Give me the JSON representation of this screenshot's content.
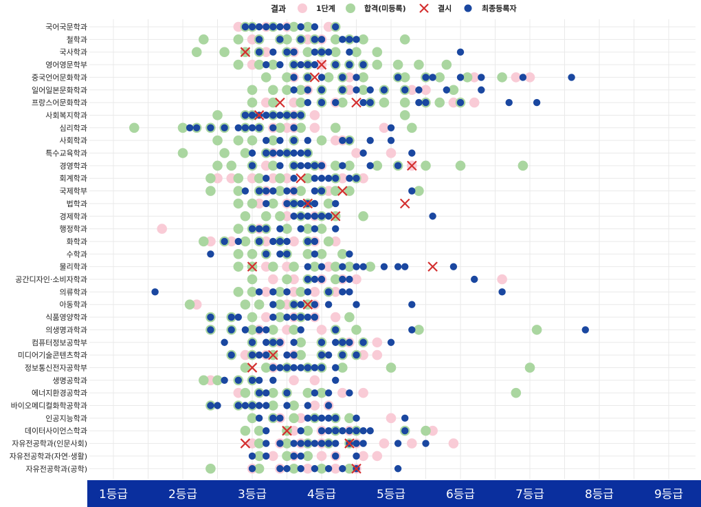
{
  "chart_data": {
    "type": "scatter",
    "legend": {
      "title": "결과",
      "placement": "top-center",
      "entries": [
        {
          "key": "s1",
          "label": "1단계",
          "color": "#f9cbd6",
          "marker": "circle"
        },
        {
          "key": "pass",
          "label": "합격(미등록)",
          "color": "#aad6a0",
          "marker": "circle"
        },
        {
          "key": "fail",
          "label": "결시",
          "color": "#d32f2f",
          "marker": "x"
        },
        {
          "key": "final",
          "label": "최종등록자",
          "color": "#1a47a0",
          "marker": "dot"
        }
      ]
    },
    "x_axis": {
      "range": [
        0.6,
        9.4
      ],
      "ticks": [
        1,
        2,
        3,
        4,
        5,
        6,
        7,
        8,
        9
      ],
      "tick_labels": [
        "1등급",
        "2등급",
        "3등급",
        "4등급",
        "5등급",
        "6등급",
        "7등급",
        "8등급",
        "9등급"
      ],
      "band_color": "#0a2f9e"
    },
    "grid": true,
    "rows": [
      {
        "name": "국어국문학과",
        "s1": [
          2.8,
          3.2,
          3.5,
          4.1
        ],
        "pass": [
          2.9,
          3.0,
          3.3,
          3.6,
          3.8,
          4.2
        ],
        "fail": [],
        "final": [
          2.9,
          3.0,
          3.1,
          3.2,
          3.3,
          3.4,
          3.5,
          3.7,
          3.9,
          4.2
        ]
      },
      {
        "name": "철학과",
        "s1": [
          3.0,
          3.8,
          4.0
        ],
        "pass": [
          2.3,
          2.8,
          3.1,
          3.4,
          3.5,
          3.7,
          3.9,
          4.2,
          4.4,
          4.6,
          5.2
        ],
        "fail": [],
        "final": [
          3.1,
          3.4,
          3.7,
          3.9,
          4.0,
          4.3,
          4.4,
          4.5
        ]
      },
      {
        "name": "국사학과",
        "s1": [
          3.2,
          3.6
        ],
        "pass": [
          2.2,
          2.6,
          2.9,
          3.1,
          3.5,
          3.8,
          4.0,
          4.2,
          4.5,
          4.8
        ],
        "fail": [
          2.9
        ],
        "final": [
          3.1,
          3.3,
          3.5,
          3.6,
          3.9,
          4.0,
          4.1,
          4.4,
          6.0
        ]
      },
      {
        "name": "영어영문학부",
        "s1": [
          3.0,
          3.3,
          4.0
        ],
        "pass": [
          2.8,
          3.1,
          3.3,
          3.6,
          3.8,
          4.2,
          4.4,
          4.6,
          4.8,
          5.1,
          5.4,
          5.8
        ],
        "fail": [
          4.0
        ],
        "final": [
          3.2,
          3.4,
          3.6,
          3.7,
          3.8,
          3.9,
          4.2,
          4.4,
          4.6
        ]
      },
      {
        "name": "중국언어문화학과",
        "s1": [
          3.6,
          4.4,
          4.6,
          6.2,
          6.8,
          7.0
        ],
        "pass": [
          3.2,
          3.5,
          3.8,
          4.1,
          4.3,
          4.6,
          5.1,
          5.2,
          5.5,
          5.7,
          6.1,
          6.6
        ],
        "fail": [
          3.9
        ],
        "final": [
          3.6,
          3.8,
          4.0,
          4.3,
          4.5,
          5.1,
          5.5,
          5.6,
          6.0,
          6.3,
          6.9,
          7.6
        ]
      },
      {
        "name": "일어일본문화학과",
        "s1": [
          3.8,
          4.4,
          5.3,
          5.5
        ],
        "pass": [
          3.0,
          3.3,
          3.5,
          3.7,
          4.0,
          4.3,
          4.6,
          4.9,
          5.2,
          5.9
        ],
        "fail": [],
        "final": [
          3.6,
          3.8,
          4.0,
          4.3,
          4.5,
          4.7,
          4.9,
          5.2,
          5.4,
          5.8,
          6.3
        ]
      },
      {
        "name": "프랑스어문화학과",
        "s1": [
          3.2,
          3.6,
          4.2,
          5.5,
          5.9,
          6.2
        ],
        "pass": [
          3.0,
          3.3,
          3.7,
          4.0,
          4.3,
          4.7,
          4.9,
          5.2,
          5.5,
          5.7,
          6.0
        ],
        "fail": [
          3.4,
          4.5
        ],
        "final": [
          3.8,
          4.0,
          4.2,
          4.6,
          4.7,
          5.4,
          5.5,
          6.0,
          6.7,
          7.1
        ]
      },
      {
        "name": "사회복지학과",
        "s1": [
          3.6,
          3.9
        ],
        "pass": [
          2.5,
          2.9,
          3.0,
          3.3,
          3.5,
          3.7,
          5.2
        ],
        "fail": [
          3.1
        ],
        "final": [
          2.9,
          3.0,
          3.1,
          3.2,
          3.3,
          3.4,
          3.5,
          3.6,
          3.7
        ]
      },
      {
        "name": "심리학과",
        "s1": [
          3.3,
          3.5,
          3.6,
          3.9,
          4.2,
          4.9
        ],
        "pass": [
          1.3,
          2.0,
          2.2,
          2.4,
          2.6,
          2.9,
          3.1,
          3.4,
          3.7,
          4.2,
          5.3
        ],
        "fail": [],
        "final": [
          2.1,
          2.2,
          2.4,
          2.6,
          2.8,
          2.9,
          3.0,
          3.1,
          3.3,
          3.6,
          5.0
        ]
      },
      {
        "name": "사회학과",
        "s1": [
          3.6,
          4.2,
          4.3
        ],
        "pass": [
          2.5,
          2.8,
          3.0,
          3.3,
          3.6,
          4.0,
          4.4
        ],
        "fail": [],
        "final": [
          3.2,
          3.4,
          3.6,
          3.8,
          4.3,
          4.4,
          4.7,
          5.0
        ]
      },
      {
        "name": "특수교육학과",
        "s1": [
          3.3,
          4.5,
          5.0
        ],
        "pass": [
          2.0,
          2.6,
          2.9,
          3.2,
          3.5,
          3.8
        ],
        "fail": [],
        "final": [
          3.0,
          3.2,
          3.3,
          3.4,
          3.5,
          3.6,
          3.7,
          3.8,
          4.6,
          5.3
        ]
      },
      {
        "name": "경영학과",
        "s1": [
          3.2,
          3.6,
          4.0,
          5.3
        ],
        "pass": [
          2.5,
          2.7,
          3.0,
          3.3,
          3.6,
          3.9,
          4.2,
          4.4,
          4.8,
          5.1,
          5.5,
          6.0,
          6.9
        ],
        "fail": [
          5.3
        ],
        "final": [
          3.0,
          3.4,
          3.6,
          3.7,
          3.8,
          3.9,
          4.0,
          4.3,
          4.7,
          5.1
        ]
      },
      {
        "name": "회계학과",
        "s1": [
          2.5,
          2.7,
          3.0,
          3.3,
          3.5,
          4.3,
          4.6
        ],
        "pass": [
          2.4,
          2.8,
          3.1,
          3.4,
          3.8,
          4.2,
          4.5
        ],
        "fail": [
          3.7
        ],
        "final": [
          3.2,
          3.6,
          3.9,
          4.0,
          4.1,
          4.2,
          4.4,
          4.5
        ]
      },
      {
        "name": "국제학부",
        "s1": [
          3.2,
          3.6,
          4.1
        ],
        "pass": [
          2.4,
          2.8,
          3.1,
          3.4,
          3.7,
          4.0,
          4.2,
          4.4,
          5.4
        ],
        "fail": [
          4.3
        ],
        "final": [
          2.9,
          3.1,
          3.2,
          3.3,
          3.5,
          3.6,
          3.9,
          4.0,
          5.3
        ]
      },
      {
        "name": "법학과",
        "s1": [
          3.1,
          3.5,
          4.1
        ],
        "pass": [
          2.8,
          3.0,
          3.3,
          3.6,
          3.8,
          4.1
        ],
        "fail": [
          3.8,
          5.2
        ],
        "final": [
          3.2,
          3.5,
          3.6,
          3.7,
          3.8,
          3.9,
          4.2
        ]
      },
      {
        "name": "경제학과",
        "s1": [
          3.5,
          3.9
        ],
        "pass": [
          2.9,
          3.2,
          3.4,
          3.7,
          4.0,
          4.2,
          4.6
        ],
        "fail": [
          4.2
        ],
        "final": [
          3.6,
          3.7,
          3.8,
          3.9,
          4.0,
          4.1,
          5.6
        ]
      },
      {
        "name": "행정학과",
        "s1": [
          1.7,
          3.1,
          3.5
        ],
        "pass": [
          2.8,
          3.0,
          3.2,
          3.5,
          3.8,
          4.0
        ],
        "fail": [],
        "final": [
          3.0,
          3.1,
          3.2,
          3.4,
          3.7,
          3.9,
          4.2
        ]
      },
      {
        "name": "화학과",
        "s1": [
          2.4,
          2.7,
          3.2,
          3.6,
          3.9,
          4.2
        ],
        "pass": [
          2.3,
          2.6,
          2.9,
          3.1,
          3.4,
          3.8,
          4.1
        ],
        "fail": [],
        "final": [
          2.6,
          2.8,
          3.1,
          3.3,
          3.4,
          3.5,
          3.8,
          3.9
        ]
      },
      {
        "name": "수학과",
        "s1": [
          3.2
        ],
        "pass": [
          2.8,
          3.0,
          3.2,
          3.5,
          3.8,
          4.0,
          4.3
        ],
        "fail": [],
        "final": [
          2.4,
          3.2,
          3.4,
          3.5,
          3.9,
          4.4
        ]
      },
      {
        "name": "물리학과",
        "s1": [
          3.2,
          3.5,
          4.1
        ],
        "pass": [
          2.8,
          3.0,
          3.3,
          3.6,
          3.9,
          4.2,
          4.4,
          4.7
        ],
        "fail": [
          3.0,
          5.6
        ],
        "final": [
          3.8,
          4.0,
          4.3,
          4.5,
          4.6,
          4.9,
          5.1,
          5.2,
          5.9
        ]
      },
      {
        "name": "공간디자인·소비자학과",
        "s1": [
          3.3,
          3.6,
          4.0,
          4.3,
          4.5,
          6.6
        ],
        "pass": [
          3.0,
          3.5,
          3.8,
          4.2
        ],
        "fail": [],
        "final": [
          3.8,
          3.9,
          4.0,
          4.3,
          4.4,
          6.2
        ]
      },
      {
        "name": "의류학과",
        "s1": [
          3.2,
          3.6,
          3.9,
          4.2
        ],
        "pass": [
          2.8,
          3.0,
          3.4,
          3.7,
          4.1
        ],
        "fail": [],
        "final": [
          1.6,
          3.1,
          3.3,
          3.5,
          3.8,
          4.1,
          4.3,
          4.4,
          6.6
        ]
      },
      {
        "name": "아동학과",
        "s1": [
          2.2,
          3.5,
          3.9
        ],
        "pass": [
          2.1,
          2.9,
          3.1,
          3.4,
          3.6,
          3.8
        ],
        "fail": [
          3.8
        ],
        "final": [
          3.3,
          3.6,
          3.7,
          3.9,
          4.1,
          4.5,
          5.3
        ]
      },
      {
        "name": "식품영양학과",
        "s1": [
          3.2,
          3.6,
          3.9,
          4.2
        ],
        "pass": [
          2.4,
          2.7,
          3.0,
          3.4,
          3.7,
          4.4
        ],
        "fail": [],
        "final": [
          2.4,
          2.7,
          2.8,
          3.3,
          3.5,
          3.6,
          3.7,
          3.8,
          3.9
        ]
      },
      {
        "name": "의생명과학과",
        "s1": [
          3.1,
          3.5,
          4.0
        ],
        "pass": [
          2.4,
          2.7,
          3.0,
          3.3,
          3.6,
          4.2,
          4.5,
          5.4,
          7.1
        ],
        "fail": [],
        "final": [
          2.4,
          2.7,
          2.9,
          3.1,
          3.2,
          3.7,
          4.2,
          5.3,
          7.8
        ]
      },
      {
        "name": "컴퓨터정보공학부",
        "s1": [
          3.4,
          4.0,
          4.4,
          4.8
        ],
        "pass": [
          3.0,
          3.3,
          3.7,
          4.0,
          4.3,
          4.6
        ],
        "fail": [],
        "final": [
          2.6,
          3.0,
          3.2,
          3.3,
          3.4,
          3.6,
          4.0,
          4.2,
          4.3,
          4.4,
          4.6,
          5.0
        ]
      },
      {
        "name": "미디어기술콘텐츠학과",
        "s1": [
          2.9,
          3.2,
          3.6,
          4.0,
          4.3,
          4.6,
          4.8
        ],
        "pass": [
          2.7,
          3.0,
          3.3,
          3.7,
          4.0,
          4.3,
          4.5
        ],
        "fail": [
          3.3
        ],
        "final": [
          2.7,
          3.0,
          3.1,
          3.2,
          3.5,
          3.6,
          4.0,
          4.1,
          4.3,
          4.5
        ]
      },
      {
        "name": "정보통신전자공학부",
        "s1": [
          3.3
        ],
        "pass": [
          2.9,
          3.2,
          3.5,
          3.8,
          4.0,
          4.3,
          5.0,
          7.0
        ],
        "fail": [
          3.0
        ],
        "final": [
          3.3,
          3.4,
          3.5,
          3.6,
          3.7,
          3.8,
          3.9,
          4.0,
          4.2
        ]
      },
      {
        "name": "생명공학과",
        "s1": [
          2.4,
          3.6,
          3.9
        ],
        "pass": [
          2.3,
          2.5,
          2.8,
          3.0
        ],
        "fail": [],
        "final": [
          2.6,
          2.8,
          3.0,
          3.1,
          3.3,
          4.2
        ]
      },
      {
        "name": "에너지환경공학과",
        "s1": [
          2.8,
          3.5,
          4.0,
          4.3,
          4.6
        ],
        "pass": [
          2.9,
          3.1,
          3.3,
          3.5,
          3.8,
          4.0,
          6.8
        ],
        "fail": [],
        "final": [
          3.1,
          3.2,
          3.5,
          3.9,
          4.1,
          4.4
        ]
      },
      {
        "name": "바이오메디컬화학공학과",
        "s1": [
          3.6,
          3.9,
          4.1
        ],
        "pass": [
          2.4,
          2.8,
          3.0,
          3.3,
          3.6
        ],
        "fail": [],
        "final": [
          2.4,
          2.5,
          2.8,
          2.9,
          3.0,
          3.1,
          3.2,
          3.5,
          3.8,
          4.1
        ]
      },
      {
        "name": "인공지능학과",
        "s1": [
          3.4,
          3.7,
          5.0
        ],
        "pass": [
          3.0,
          3.3,
          3.6,
          3.9,
          4.2,
          4.4
        ],
        "fail": [],
        "final": [
          3.1,
          3.3,
          3.4,
          3.8,
          3.9,
          4.0,
          4.1,
          4.2,
          4.5,
          5.2
        ]
      },
      {
        "name": "데이터사이언스학과",
        "s1": [
          3.6,
          4.0,
          4.4,
          5.6
        ],
        "pass": [
          2.9,
          3.1,
          3.5,
          3.8,
          4.2,
          4.5,
          5.2,
          5.5
        ],
        "fail": [
          3.5
        ],
        "final": [
          3.2,
          3.7,
          4.0,
          4.1,
          4.2,
          4.3,
          4.4,
          4.5,
          4.6,
          4.7,
          5.2
        ]
      },
      {
        "name": "자유전공학과(인문사회)",
        "s1": [
          3.0,
          3.4,
          3.7,
          4.0,
          4.5,
          4.9,
          5.3,
          5.9
        ],
        "pass": [
          3.1,
          3.5,
          3.8,
          4.1,
          4.4
        ],
        "fail": [
          2.9,
          4.4
        ],
        "final": [
          3.2,
          3.4,
          3.6,
          3.7,
          3.8,
          3.9,
          4.0,
          4.1,
          4.2,
          4.4,
          4.5,
          4.6,
          5.1,
          5.5
        ]
      },
      {
        "name": "자유전공학과(자연·생활)",
        "s1": [
          3.3,
          3.6,
          4.0,
          4.2,
          4.6,
          4.8
        ],
        "pass": [
          3.1,
          3.5,
          3.8
        ],
        "fail": [],
        "final": [
          3.0,
          3.2,
          3.6,
          3.7,
          4.2,
          4.5
        ]
      },
      {
        "name": "자유전공학과(공학)",
        "s1": [
          3.0,
          3.4,
          3.8,
          4.2,
          4.5
        ],
        "pass": [
          2.4,
          3.1,
          3.6,
          4.0,
          4.4
        ],
        "fail": [
          4.5
        ],
        "final": [
          3.0,
          3.4,
          3.5,
          3.7,
          3.9,
          4.1,
          4.3,
          4.5,
          5.1
        ]
      }
    ]
  }
}
